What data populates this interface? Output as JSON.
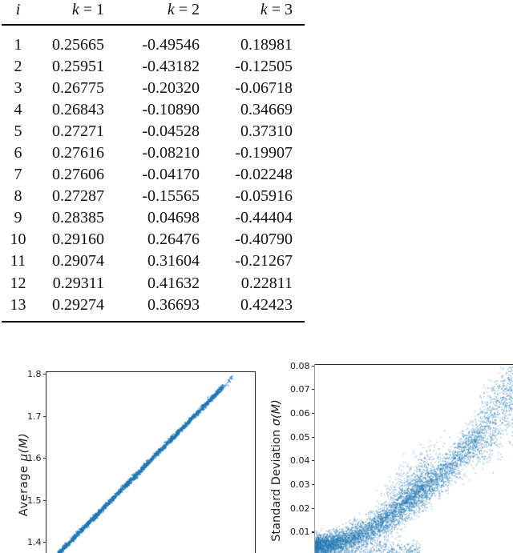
{
  "table": {
    "headers": [
      {
        "italic": "i",
        "rest": ""
      },
      {
        "italic": "k",
        "rest": " = 1"
      },
      {
        "italic": "k",
        "rest": " = 2"
      },
      {
        "italic": "k",
        "rest": " = 3"
      }
    ],
    "rows": [
      [
        "1",
        "0.25665",
        "-0.49546",
        "0.18981"
      ],
      [
        "2",
        "0.25951",
        "-0.43182",
        "-0.12505"
      ],
      [
        "3",
        "0.26775",
        "-0.20320",
        "-0.06718"
      ],
      [
        "4",
        "0.26843",
        "-0.10890",
        "0.34669"
      ],
      [
        "5",
        "0.27271",
        "-0.04528",
        "0.37310"
      ],
      [
        "6",
        "0.27616",
        "-0.08210",
        "-0.19907"
      ],
      [
        "7",
        "0.27606",
        "-0.04170",
        "-0.02248"
      ],
      [
        "8",
        "0.27287",
        "-0.15565",
        "-0.05916"
      ],
      [
        "9",
        "0.28385",
        "0.04698",
        "-0.44404"
      ],
      [
        "10",
        "0.29160",
        "0.26476",
        "-0.40790"
      ],
      [
        "11",
        "0.29074",
        "0.31604",
        "-0.21267"
      ],
      [
        "12",
        "0.29311",
        "0.41632",
        "0.22811"
      ],
      [
        "13",
        "0.29274",
        "0.36693",
        "0.42423"
      ]
    ]
  },
  "chart_data": [
    {
      "id": "average-plot",
      "type": "scatter",
      "ylabel_prefix": "Average ",
      "ylabel_math": "μ(M)",
      "yticks": [
        1.8,
        1.7,
        1.6,
        1.5,
        1.4
      ],
      "ylim_visible": [
        1.37,
        1.81
      ],
      "marker_color": "#1f77b4",
      "note": "tight linear band rising left-to-right; x-axis cut off at image bottom",
      "gen": {
        "n": 3000,
        "mu_left": 1.345,
        "mu_span": 0.504,
        "noise_sd": 0.0033,
        "dense_t_max": 0.845,
        "tip_t_max": 0.893
      }
    },
    {
      "id": "stddev-plot",
      "type": "scatter",
      "ylabel_prefix": "Standard Deviation  ",
      "ylabel_math": "σ(M)",
      "yticks": [
        0.08,
        0.07,
        0.06,
        0.05,
        0.04,
        0.03,
        0.02,
        0.01
      ],
      "ylim_visible": [
        0.0,
        0.08
      ],
      "marker_color": "#1f77b4",
      "note": "dense heteroscedastic cloud rising from ~0.005 to ~0.075; bulge near 0.04; x-axis cut off",
      "gen": {
        "n_main": 6200,
        "t_exp": 1.45,
        "t_max": 1.02,
        "base": 0.0045,
        "coef": 0.072,
        "pow": 1.75,
        "noise0": 0.0022,
        "noise1": 0.003,
        "bulge_n": 750,
        "bulge_t_mean": 0.46,
        "bulge_t_sd": 0.07,
        "bulge_amp": 0.0075,
        "floor_n": 500,
        "floor_t_max": 0.5,
        "floor_spread": 0.003
      }
    }
  ]
}
